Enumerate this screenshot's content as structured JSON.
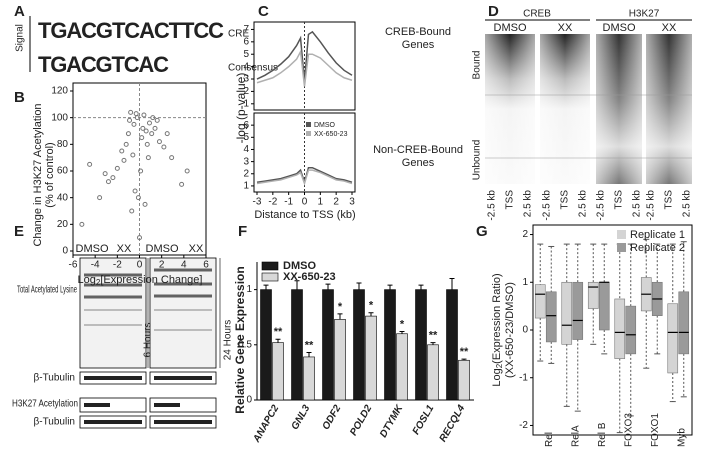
{
  "panel_labels": [
    "A",
    "B",
    "C",
    "D",
    "E",
    "F",
    "G"
  ],
  "logo": {
    "ylabel": "Signal",
    "rows": [
      {
        "letters": "TGACGTCACTTCC",
        "name": "CRE"
      },
      {
        "letters": "TGACGTCAC",
        "name": "Consensus"
      }
    ]
  },
  "heatmap": {
    "groups": [
      "CREB",
      "H3K27"
    ],
    "columns": [
      "DMSO",
      "XX"
    ],
    "rows": [
      "Bound",
      "Unbound"
    ],
    "xlabels": [
      "-2.5 kb",
      "TSS",
      "2.5 kb"
    ]
  },
  "blot": {
    "conditions": [
      "DMSO",
      "XX"
    ],
    "times": [
      "6 Hours",
      "24 Hours"
    ],
    "labels": [
      "Total Acetylated Lysine",
      "β-Tubulin",
      "H3K27 Acetylation",
      "β-Tubulin"
    ]
  },
  "chart_data": [
    {
      "type": "scatter",
      "ylabel": [
        "Change in H3K27 Acetylation",
        "(% of control)"
      ],
      "xlabel": [
        "Log",
        "2",
        "[Expression Change]"
      ],
      "x": [
        -0.5,
        0.3,
        -1.2,
        1.1,
        0.8,
        -0.9,
        0.1,
        -0.2,
        0.6,
        -1.6,
        1.8,
        -2.4,
        2.2,
        -0.4,
        0.4,
        -3.1,
        2.9,
        -0.7,
        0.9,
        -1.4,
        1.4,
        -4.5,
        0.0,
        -0.1,
        0.2,
        -5.2,
        3.8,
        -2.0,
        1.6,
        -0.3,
        0.5,
        -1.0,
        1.2,
        -3.6,
        -0.6,
        0.7,
        -2.8,
        2.5,
        -0.8,
        4.3
      ],
      "values": [
        95,
        92,
        80,
        88,
        70,
        98,
        60,
        100,
        90,
        75,
        82,
        55,
        78,
        45,
        102,
        58,
        70,
        30,
        96,
        68,
        92,
        65,
        10,
        40,
        85,
        20,
        50,
        62,
        98,
        103,
        35,
        88,
        100,
        40,
        72,
        80,
        52,
        88,
        104,
        60
      ],
      "color": "#777777",
      "xlim": [
        -6,
        6
      ],
      "xticks": [
        -6,
        -4,
        -2,
        0,
        2,
        4,
        6
      ],
      "ylim": [
        0,
        120
      ],
      "yticks": [
        0,
        20,
        40,
        60,
        80,
        100,
        120
      ]
    },
    {
      "type": "line",
      "ylabel": "-log (p-value)",
      "xlabel": "Distance to TSS (kb)",
      "x": [
        -3,
        -2.5,
        -2,
        -1.5,
        -1,
        -0.5,
        -0.25,
        0,
        0.25,
        0.5,
        1,
        1.5,
        2,
        2.5,
        3
      ],
      "xlim": [
        -3,
        3
      ],
      "xticks": [
        -3,
        -2,
        -1,
        0,
        1,
        2,
        3
      ],
      "series": [
        {
          "name": "DMSO",
          "color": "#555555"
        },
        {
          "name": "XX-650-23",
          "color": "#b0b0b0"
        }
      ],
      "panels": [
        {
          "label": [
            "CREB-Bound",
            "Genes"
          ],
          "ylim": [
            0.5,
            7.6
          ],
          "yticks": [
            1,
            2,
            3,
            4,
            5,
            6,
            7
          ],
          "values": [
            [
              3.0,
              3.3,
              3.7,
              4.2,
              4.8,
              5.7,
              6.3,
              2.8,
              6.6,
              6.8,
              6.0,
              5.1,
              4.3,
              3.7,
              3.3
            ],
            [
              2.7,
              2.9,
              3.1,
              3.5,
              4.0,
              4.6,
              5.2,
              2.4,
              5.0,
              5.0,
              4.7,
              4.1,
              3.5,
              3.1,
              2.9
            ]
          ]
        },
        {
          "label": [
            "Non-CREB-Bound",
            "Genes"
          ],
          "ylim": [
            0.5,
            7
          ],
          "yticks": [
            1,
            2,
            3,
            4,
            5,
            6
          ],
          "values": [
            [
              1.3,
              1.4,
              1.5,
              1.6,
              1.8,
              2.0,
              2.3,
              1.3,
              2.5,
              2.5,
              2.2,
              1.9,
              1.6,
              1.5,
              1.3
            ],
            [
              1.2,
              1.3,
              1.4,
              1.5,
              1.7,
              1.9,
              2.1,
              1.2,
              2.3,
              2.3,
              2.1,
              1.8,
              1.5,
              1.4,
              1.2
            ]
          ]
        }
      ]
    },
    {
      "type": "bar",
      "ylabel": "Relative Gene Expression",
      "categories": [
        "ANAPC2",
        "GNL3",
        "ODF2",
        "POLD2",
        "DTYMK",
        "FOSL1",
        "RECQL4"
      ],
      "series": [
        {
          "name": "DMSO",
          "color": "#1a1a1a",
          "values": [
            1,
            1,
            1,
            1,
            1,
            1,
            1
          ],
          "errors": [
            0.04,
            0.08,
            0.05,
            0.06,
            0.04,
            0.04,
            0.1
          ]
        },
        {
          "name": "XX-650-23",
          "color": "#d8d8d8",
          "values": [
            0.52,
            0.39,
            0.73,
            0.76,
            0.6,
            0.5,
            0.36
          ],
          "errors": [
            0.03,
            0.04,
            0.05,
            0.03,
            0.02,
            0.02,
            0.01
          ]
        }
      ],
      "significance": [
        "**",
        "**",
        "*",
        "*",
        "*",
        "**",
        "**"
      ],
      "ylim": [
        0,
        1.25
      ],
      "yticks": [
        0,
        0.5,
        1
      ]
    },
    {
      "type": "box",
      "ylabel": [
        [
          "Log",
          "2",
          "(Expression Ratio)"
        ],
        "(XX-650-23/DMSO)"
      ],
      "categories": [
        "Rel",
        "RelA",
        "Rel B",
        "FOXO3",
        "FOXO1",
        "Myb"
      ],
      "ylim": [
        -2.2,
        2.2
      ],
      "yticks": [
        -2,
        -1,
        0,
        1,
        2
      ],
      "legend": "top-right",
      "series": [
        {
          "name": "Replicate 1",
          "color": "#d4d4d4",
          "values": [
            {
              "min": -0.65,
              "q1": 0.25,
              "median": 0.75,
              "q3": 0.95,
              "max": 1.8
            },
            {
              "min": -1.6,
              "q1": -0.3,
              "median": 0.1,
              "q3": 1.0,
              "max": 1.8
            },
            {
              "min": -0.3,
              "q1": 0.45,
              "median": 0.9,
              "q3": 1.0,
              "max": 1.8
            },
            {
              "min": -2.15,
              "q1": -0.6,
              "median": -0.05,
              "q3": 0.65,
              "max": 1.8
            },
            {
              "min": -0.8,
              "q1": 0.4,
              "median": 0.75,
              "q3": 1.1,
              "max": 1.9
            },
            {
              "min": -1.5,
              "q1": -0.9,
              "median": -0.05,
              "q3": 0.55,
              "max": 1.8
            }
          ]
        },
        {
          "name": "Replicate 2",
          "color": "#9a9a9a",
          "values": [
            {
              "min": -0.7,
              "q1": -0.25,
              "median": 0.3,
              "q3": 0.8,
              "max": 1.75
            },
            {
              "min": -1.7,
              "q1": -0.2,
              "median": 0.2,
              "q3": 1.0,
              "max": 1.8
            },
            {
              "min": -0.5,
              "q1": 0.0,
              "median": 1.0,
              "q3": 1.0,
              "max": 1.8
            },
            {
              "min": -1.8,
              "q1": -0.5,
              "median": -0.1,
              "q3": 0.5,
              "max": 1.8
            },
            {
              "min": -0.5,
              "q1": 0.3,
              "median": 0.65,
              "q3": 1.0,
              "max": 1.8
            },
            {
              "min": -1.4,
              "q1": -0.5,
              "median": -0.05,
              "q3": 0.8,
              "max": 1.85
            }
          ]
        }
      ]
    }
  ]
}
